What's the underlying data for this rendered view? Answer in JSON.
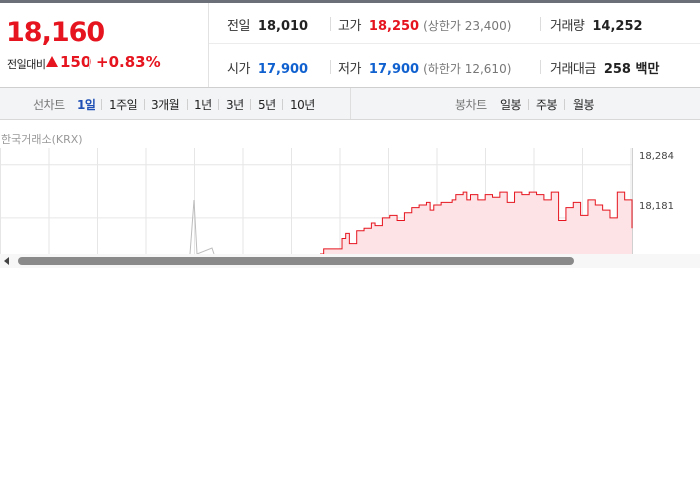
{
  "price": {
    "current": "18,160",
    "change_label": "전일대비",
    "change_value": "150",
    "change_rate": "+0.83%",
    "color_up": "#e5141e"
  },
  "stats": {
    "prev_close": {
      "label": "전일",
      "value": "18,010"
    },
    "high": {
      "label": "고가",
      "value": "18,250",
      "limit_text": "(상한가 23,400)"
    },
    "volume": {
      "label": "거래량",
      "value": "14,252"
    },
    "open": {
      "label": "시가",
      "value": "17,900"
    },
    "low": {
      "label": "저가",
      "value": "17,900",
      "limit_text": "(하한가 12,610)"
    },
    "trade_amount": {
      "label": "거래대금",
      "value": "258 백만"
    }
  },
  "toolbar": {
    "line_chart_label": "선차트",
    "periods": [
      "1일",
      "1주일",
      "3개월",
      "1년",
      "3년",
      "5년",
      "10년"
    ],
    "active_period": "1일",
    "candle_chart_label": "봉차트",
    "candle_periods": [
      "일봉",
      "주봉",
      "월봉"
    ]
  },
  "chart": {
    "source": "한국거래소(KRX)",
    "y_labels": [
      "18,284",
      "18,181"
    ],
    "line_color": "#e5141e",
    "fill_color": "#fde3e5",
    "grid_color": "#e6e6e6"
  },
  "chart_data": {
    "type": "area",
    "title": "",
    "xlabel": "",
    "ylabel": "",
    "y_ticks": [
      18284,
      18181
    ],
    "ylim": [
      18110,
      18300
    ],
    "series": [
      {
        "x_frac": [
          0.0,
          0.27,
          0.275,
          0.28,
          0.45,
          0.46,
          0.5,
          0.51,
          0.52,
          0.53,
          0.55,
          0.57,
          0.59,
          0.6,
          0.62,
          0.64,
          0.66,
          0.68,
          0.7,
          0.72,
          0.74,
          0.75,
          0.76,
          0.78,
          0.8,
          0.81,
          0.82,
          0.84,
          0.85,
          0.86,
          0.88,
          0.9,
          0.92,
          0.94,
          0.96,
          0.98,
          1.0,
          1.02,
          1.04,
          1.06,
          1.08,
          1.1,
          1.12,
          1.14,
          1.16,
          1.18,
          1.2,
          1.22,
          1.24,
          1.26,
          1.28,
          1.3
        ],
        "values": [
          18110,
          18110,
          18200,
          18110,
          18110,
          18120,
          18120,
          18140,
          18150,
          18130,
          18155,
          18160,
          18170,
          18165,
          18180,
          18185,
          18175,
          18190,
          18200,
          18205,
          18210,
          18195,
          18205,
          18210,
          18210,
          18215,
          18225,
          18230,
          18215,
          18225,
          18215,
          18225,
          18220,
          18230,
          18210,
          18230,
          18225,
          18230,
          18225,
          18215,
          18230,
          18175,
          18200,
          18210,
          18185,
          18215,
          18205,
          18195,
          18180,
          18230,
          18215,
          18160
        ],
        "color": "#e5141e"
      }
    ]
  }
}
